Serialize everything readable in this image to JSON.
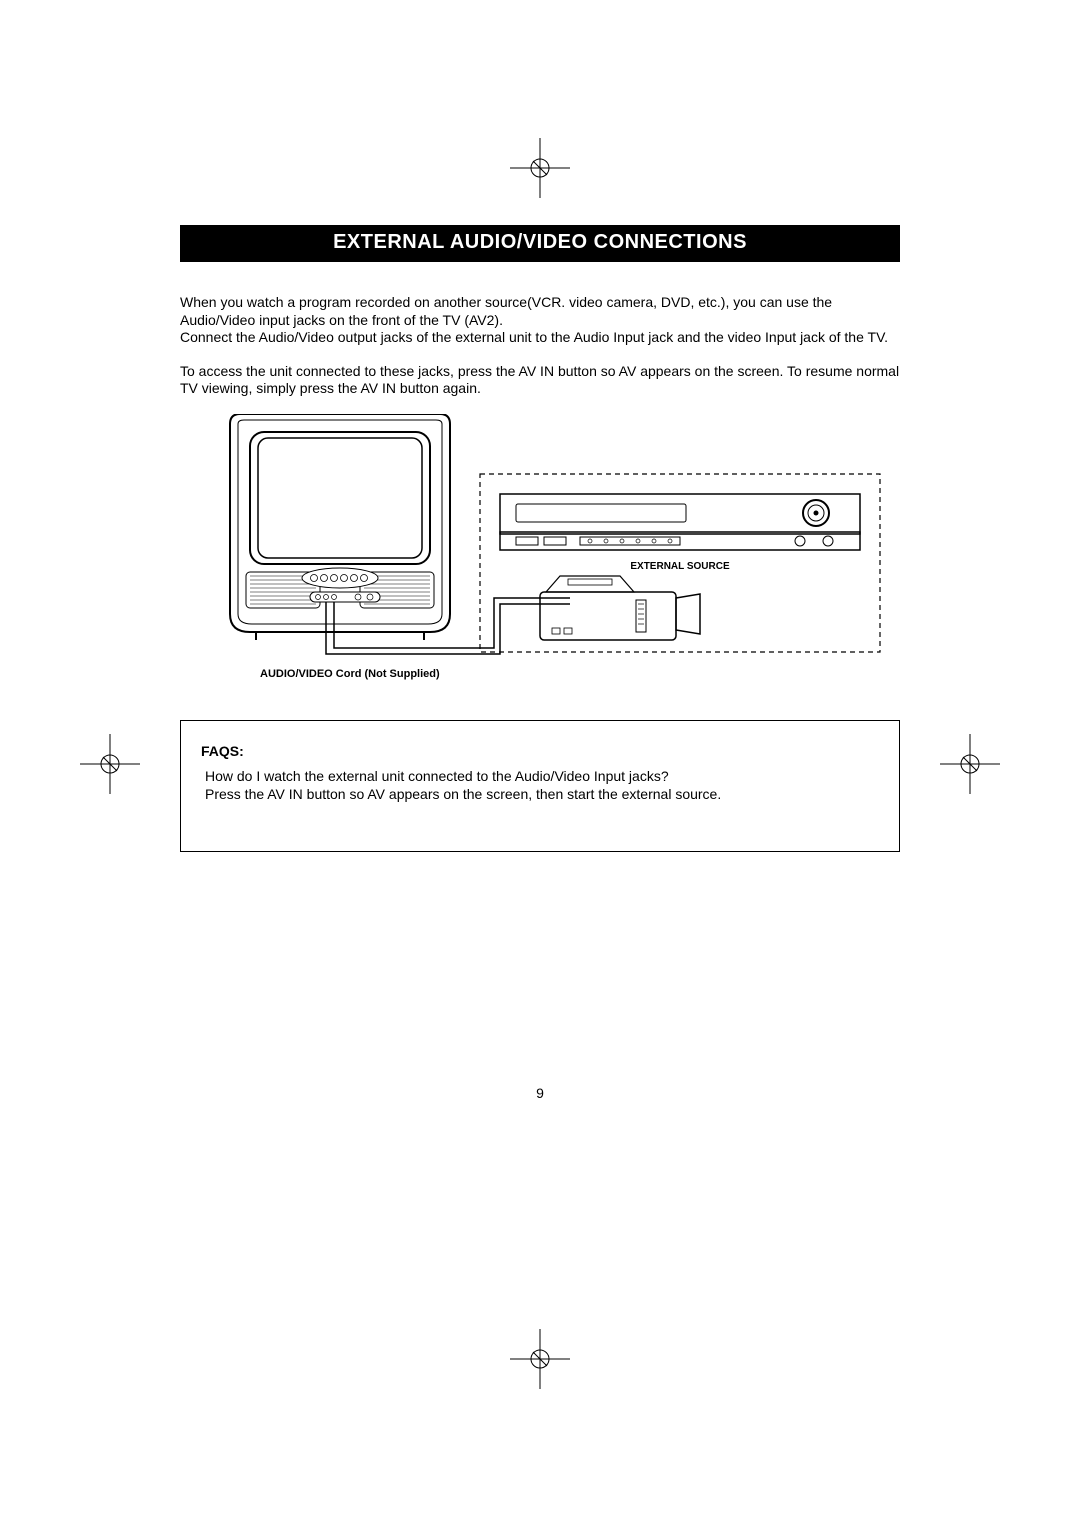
{
  "title": "EXTERNAL AUDIO/VIDEO CONNECTIONS",
  "paragraph1": "When you watch a program recorded on another source(VCR. video camera, DVD, etc.), you can use the  Audio/Video input jacks on the front of the TV (AV2).\nConnect the Audio/Video output jacks of the external unit to the Audio Input jack and the video Input jack of the TV.",
  "paragraph2": "To access the unit connected to these jacks, press the AV IN button so AV appears on the screen. To  resume normal TV  viewing, simply press the AV IN button again.",
  "diagram": {
    "cord_caption": "AUDIO/VIDEO Cord (Not Supplied)",
    "external_source_label": "EXTERNAL SOURCE"
  },
  "faq": {
    "title": "FAQS:",
    "question": "How do I watch the external unit connected to the Audio/Video Input jacks?",
    "answer": "Press the AV IN button so AV appears on the screen, then start the external source."
  },
  "page_number": "9",
  "colors": {
    "text": "#000000",
    "bg": "#ffffff",
    "title_bar_bg": "#000000",
    "title_bar_fg": "#ffffff",
    "stroke": "#000000"
  }
}
